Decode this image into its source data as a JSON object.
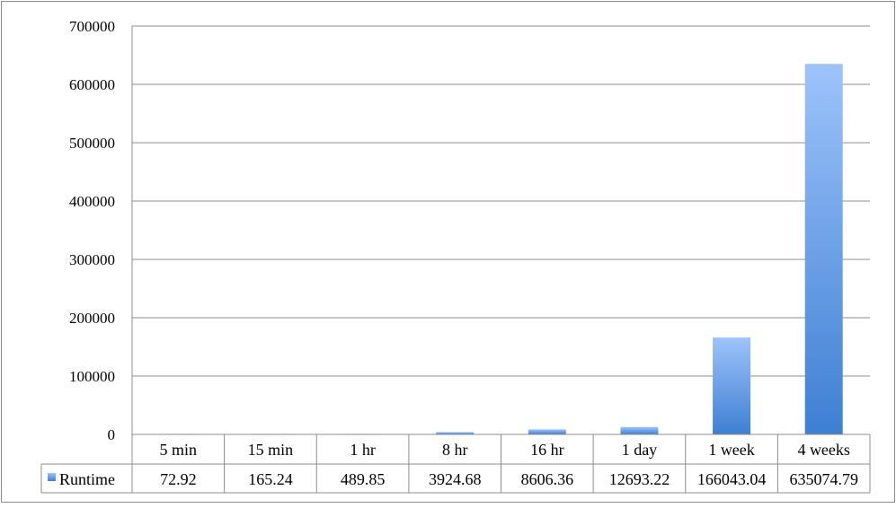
{
  "chart_data": {
    "type": "bar",
    "categories": [
      "5 min",
      "15 min",
      "1 hr",
      "8 hr",
      "16 hr",
      "1 day",
      "1 week",
      "4 weeks"
    ],
    "series": [
      {
        "name": "Runtime",
        "values": [
          72.92,
          165.24,
          489.85,
          3924.68,
          8606.36,
          12693.22,
          166043.04,
          635074.79
        ],
        "value_labels": [
          "72.92",
          "165.24",
          "489.85",
          "3924.68",
          "8606.36",
          "12693.22",
          "166043.04",
          "635074.79"
        ]
      }
    ],
    "y_ticks": [
      "0",
      "100000",
      "200000",
      "300000",
      "400000",
      "500000",
      "600000",
      "700000"
    ],
    "ylim": [
      0,
      700000
    ],
    "grid": true,
    "legend": "data-table-left",
    "colors": {
      "bar_top": "#9dc3fb",
      "bar_bottom": "#3e7fd3",
      "grid": "#8c8c8c",
      "border": "#8c8c8c"
    }
  }
}
